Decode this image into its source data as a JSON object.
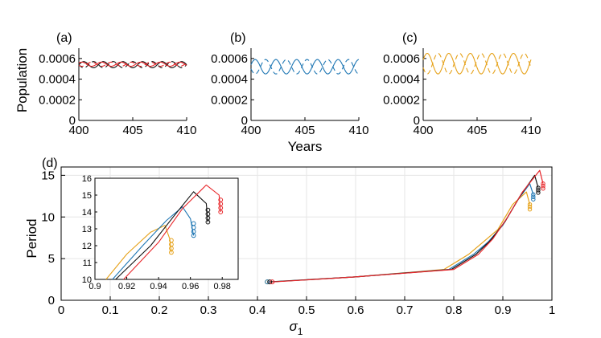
{
  "colors": {
    "red": "#e8262a",
    "black": "#111111",
    "blue": "#1f77b4",
    "orange": "#e6a21a",
    "grid": "#e6e6e6"
  },
  "chart_data": [
    {
      "panel": "(a)",
      "type": "line",
      "ylabel": "Population",
      "xlim": [
        400,
        410
      ],
      "ylim": [
        0,
        0.0007
      ],
      "xticks": [
        "400",
        "405",
        "410"
      ],
      "yticks": [
        "0",
        "0.0002",
        "0.0004",
        "0.0006"
      ],
      "series": [
        {
          "name": "black solid",
          "color": "black",
          "dash": false,
          "mean": 0.00054,
          "amp": 3e-05,
          "cycles": 5.5,
          "phase": 0
        },
        {
          "name": "black dashed",
          "color": "black",
          "dash": true,
          "mean": 0.00054,
          "amp": 3e-05,
          "cycles": 5.5,
          "phase": 3.14
        },
        {
          "name": "red solid",
          "color": "red",
          "dash": false,
          "mean": 0.000545,
          "amp": 2e-05,
          "cycles": 5.5,
          "phase": 0.6
        },
        {
          "name": "red dashed",
          "color": "red",
          "dash": true,
          "mean": 0.000545,
          "amp": 2e-05,
          "cycles": 5.5,
          "phase": 3.7
        }
      ]
    },
    {
      "panel": "(b)",
      "type": "line",
      "xlabel": "Years",
      "xlim": [
        400,
        410
      ],
      "ylim": [
        0,
        0.0007
      ],
      "xticks": [
        "400",
        "405",
        "410"
      ],
      "yticks": [
        "0",
        "0.0002",
        "0.0004",
        "0.0006"
      ],
      "series": [
        {
          "name": "blue solid",
          "color": "blue",
          "dash": false,
          "mean": 0.00052,
          "amp": 7e-05,
          "cycles": 5.2,
          "phase": 0.3
        },
        {
          "name": "blue dashed",
          "color": "blue",
          "dash": true,
          "mean": 0.00052,
          "amp": 7e-05,
          "cycles": 5.2,
          "phase": 3.44
        }
      ]
    },
    {
      "panel": "(c)",
      "type": "line",
      "xlim": [
        400,
        410
      ],
      "ylim": [
        0,
        0.0007
      ],
      "xticks": [
        "400",
        "405",
        "410"
      ],
      "yticks": [
        "0",
        "0.0002",
        "0.0004",
        "0.0006"
      ],
      "series": [
        {
          "name": "orange solid",
          "color": "orange",
          "dash": false,
          "mean": 0.00055,
          "amp": 0.0001,
          "cycles": 5.0,
          "phase": 0.4
        },
        {
          "name": "orange dashed",
          "color": "orange",
          "dash": true,
          "mean": 0.00055,
          "amp": 0.0001,
          "cycles": 5.0,
          "phase": 3.54
        }
      ]
    },
    {
      "panel": "(d)",
      "type": "line",
      "xlabel": "σ",
      "xlabel_sub": "1",
      "ylabel": "Period",
      "xlim": [
        0,
        1
      ],
      "ylim": [
        0,
        16
      ],
      "xticks": [
        "0",
        "0.1",
        "0.2",
        "0.3",
        "0.4",
        "0.5",
        "0.6",
        "0.7",
        "0.8",
        "0.9",
        "1"
      ],
      "yticks": [
        "0",
        "5",
        "10",
        "15"
      ],
      "series": [
        {
          "name": "orange",
          "color": "orange",
          "x": [
            0.42,
            0.6,
            0.78,
            0.83,
            0.86,
            0.89,
            0.92,
            0.948,
            0.955
          ],
          "y": [
            2.2,
            2.8,
            3.7,
            5.5,
            7.0,
            8.5,
            11.5,
            13.0,
            11.5
          ]
        },
        {
          "name": "blue",
          "color": "blue",
          "x": [
            0.42,
            0.6,
            0.79,
            0.84,
            0.87,
            0.9,
            0.93,
            0.955,
            0.962
          ],
          "y": [
            2.2,
            2.8,
            3.7,
            5.5,
            7.0,
            9.0,
            12.0,
            14.0,
            12.7
          ]
        },
        {
          "name": "black",
          "color": "black",
          "x": [
            0.425,
            0.6,
            0.795,
            0.845,
            0.875,
            0.905,
            0.935,
            0.965,
            0.972
          ],
          "y": [
            2.2,
            2.8,
            3.7,
            5.5,
            7.2,
            9.5,
            12.5,
            15.0,
            13.5
          ]
        },
        {
          "name": "red",
          "color": "red",
          "x": [
            0.43,
            0.6,
            0.8,
            0.85,
            0.88,
            0.91,
            0.94,
            0.975,
            0.982
          ],
          "y": [
            2.2,
            2.8,
            3.7,
            5.5,
            7.4,
            10.0,
            13.0,
            15.6,
            14.0
          ]
        }
      ]
    },
    {
      "panel": "inset",
      "type": "line",
      "xlim": [
        0.9,
        0.99
      ],
      "ylim": [
        10,
        16
      ],
      "xticks": [
        "0.9",
        "0.92",
        "0.94",
        "0.96",
        "0.98"
      ],
      "yticks": [
        "10",
        "11",
        "12",
        "13",
        "14",
        "15",
        "16"
      ],
      "series": [
        {
          "name": "orange",
          "color": "orange",
          "x": [
            0.907,
            0.92,
            0.935,
            0.944,
            0.947,
            0.948
          ],
          "y": [
            10.0,
            11.5,
            12.8,
            13.2,
            12.4,
            11.6
          ]
        },
        {
          "name": "blue",
          "color": "blue",
          "x": [
            0.911,
            0.93,
            0.945,
            0.955,
            0.96,
            0.962
          ],
          "y": [
            10.0,
            12.0,
            13.5,
            14.3,
            13.6,
            12.6
          ]
        },
        {
          "name": "black",
          "color": "black",
          "x": [
            0.913,
            0.935,
            0.95,
            0.962,
            0.97,
            0.971
          ],
          "y": [
            10.0,
            12.0,
            13.8,
            15.2,
            14.5,
            13.4
          ]
        },
        {
          "name": "red",
          "color": "red",
          "x": [
            0.918,
            0.94,
            0.955,
            0.97,
            0.978,
            0.979
          ],
          "y": [
            10.0,
            12.2,
            14.2,
            15.6,
            15.0,
            14.0
          ]
        }
      ]
    }
  ]
}
